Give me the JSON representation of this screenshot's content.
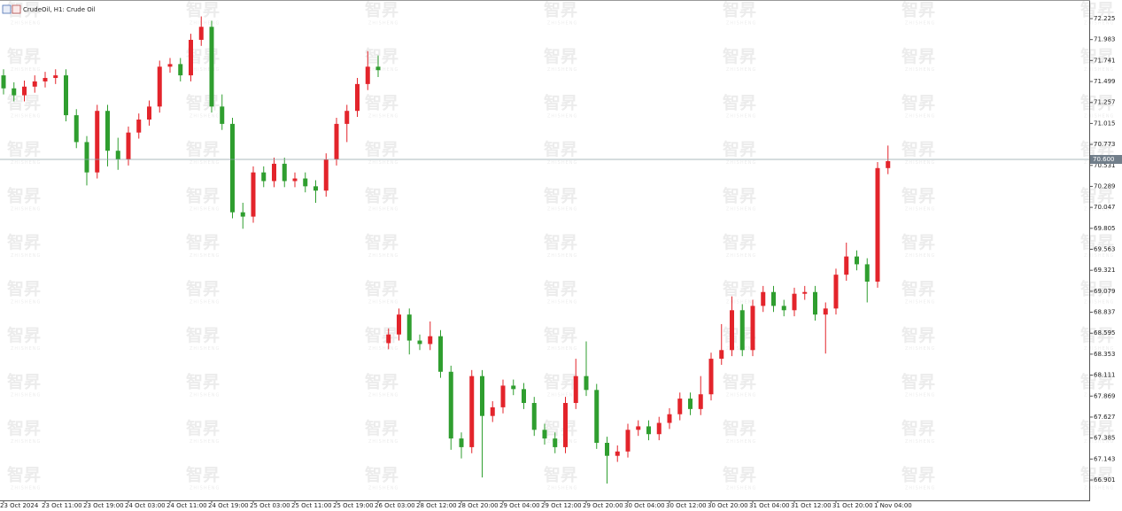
{
  "chart_data": {
    "type": "candlestick",
    "title": "CrudeOil, H1: Crude Oil",
    "watermark": "智昇",
    "watermark_sub": "ZHISHENG",
    "up_color": "#e3242b",
    "down_color": "#2f9e2f",
    "grid": false,
    "current_price": {
      "value": 70.6,
      "label": "70.600"
    },
    "ylim": [
      66.666,
      72.419
    ],
    "yticks": [
      72.225,
      71.983,
      71.741,
      71.499,
      71.257,
      71.015,
      70.773,
      70.531,
      70.289,
      70.047,
      69.805,
      69.563,
      69.321,
      69.079,
      68.837,
      68.595,
      68.353,
      68.111,
      67.869,
      67.627,
      67.385,
      67.143,
      66.901
    ],
    "categories": [
      "23 Oct 2024",
      null,
      null,
      null,
      "23 Oct 11:00",
      null,
      null,
      null,
      "23 Oct 19:00",
      null,
      null,
      null,
      "24 Oct 03:00",
      null,
      null,
      null,
      "24 Oct 11:00",
      null,
      null,
      null,
      "24 Oct 19:00",
      null,
      null,
      null,
      "25 Oct 03:00",
      null,
      null,
      null,
      "25 Oct 11:00",
      null,
      null,
      null,
      "25 Oct 19:00",
      null,
      null,
      null,
      "26 Oct 03:00",
      null,
      null,
      null,
      "28 Oct 12:00",
      null,
      null,
      null,
      "28 Oct 20:00",
      null,
      null,
      null,
      "29 Oct 04:00",
      null,
      null,
      null,
      "29 Oct 12:00",
      null,
      null,
      null,
      "29 Oct 20:00",
      null,
      null,
      null,
      "30 Oct 04:00",
      null,
      null,
      null,
      "30 Oct 12:00",
      null,
      null,
      null,
      "30 Oct 20:00",
      null,
      null,
      null,
      "31 Oct 04:00",
      null,
      null,
      null,
      "31 Oct 12:00",
      null,
      null,
      null,
      "31 Oct 20:00",
      null,
      null,
      null,
      "1 Nov 04:00",
      null
    ],
    "open": [
      71.57,
      71.42,
      71.34,
      71.44,
      71.5,
      71.54,
      71.57,
      71.11,
      70.8,
      70.45,
      71.16,
      70.7,
      70.6,
      70.91,
      71.06,
      71.21,
      71.67,
      71.7,
      71.57,
      71.98,
      72.13,
      71.21,
      71.01,
      69.99,
      69.94,
      70.45,
      70.35,
      70.55,
      70.35,
      70.38,
      70.29,
      70.24,
      70.6,
      71.01,
      71.16,
      71.47,
      71.67,
      68.48,
      68.58,
      68.81,
      68.51,
      68.47,
      68.56,
      68.15,
      67.38,
      67.28,
      68.1,
      67.64,
      67.74,
      67.99,
      67.95,
      67.79,
      67.48,
      67.38,
      67.28,
      67.79,
      68.1,
      67.94,
      67.33,
      67.18,
      67.23,
      67.48,
      67.52,
      67.43,
      67.56,
      67.66,
      67.84,
      67.72,
      67.89,
      68.3,
      68.4,
      68.86,
      68.4,
      68.91,
      69.07,
      68.91,
      68.86,
      69.05,
      69.07,
      68.81,
      68.88,
      69.27,
      69.48,
      69.39,
      69.19,
      70.5
    ],
    "high": [
      71.64,
      71.49,
      71.51,
      71.57,
      71.61,
      71.64,
      71.64,
      71.18,
      70.87,
      71.23,
      71.23,
      70.85,
      70.98,
      71.13,
      71.28,
      71.74,
      71.77,
      71.77,
      72.05,
      72.25,
      72.2,
      71.35,
      71.08,
      70.1,
      70.52,
      70.52,
      70.62,
      70.62,
      70.45,
      70.45,
      70.36,
      70.67,
      71.08,
      71.23,
      71.54,
      71.85,
      71.8,
      68.65,
      68.88,
      68.88,
      68.58,
      68.73,
      68.63,
      68.22,
      67.45,
      68.17,
      68.17,
      67.81,
      68.06,
      68.06,
      68.02,
      67.86,
      67.55,
      67.45,
      67.86,
      68.3,
      68.5,
      68.01,
      67.4,
      67.3,
      67.55,
      67.59,
      67.59,
      67.63,
      67.73,
      67.91,
      67.91,
      68.1,
      68.37,
      68.7,
      69.02,
      68.93,
      68.98,
      69.14,
      69.14,
      68.98,
      69.12,
      69.14,
      69.14,
      68.95,
      69.34,
      69.64,
      69.55,
      69.46,
      70.57,
      70.76
    ],
    "low": [
      71.35,
      71.27,
      71.27,
      71.37,
      71.43,
      71.47,
      71.04,
      70.73,
      70.3,
      70.38,
      70.52,
      70.48,
      70.53,
      70.84,
      70.99,
      71.14,
      71.6,
      71.5,
      71.5,
      71.91,
      71.14,
      70.94,
      69.92,
      69.8,
      69.87,
      70.28,
      70.28,
      70.28,
      70.28,
      70.22,
      70.1,
      70.17,
      70.53,
      70.8,
      71.09,
      71.4,
      71.55,
      68.41,
      68.51,
      68.35,
      68.4,
      68.4,
      68.08,
      67.25,
      67.15,
      67.21,
      66.93,
      67.57,
      67.67,
      67.88,
      67.72,
      67.41,
      67.31,
      67.21,
      67.21,
      67.72,
      67.87,
      67.26,
      66.86,
      67.11,
      67.16,
      67.41,
      67.36,
      67.36,
      67.49,
      67.59,
      67.65,
      67.65,
      67.82,
      68.23,
      68.33,
      68.33,
      68.33,
      68.84,
      68.84,
      68.79,
      68.79,
      68.98,
      68.74,
      68.36,
      68.81,
      69.2,
      69.32,
      68.95,
      69.12,
      70.43
    ],
    "close": [
      71.42,
      71.34,
      71.44,
      71.5,
      71.54,
      71.57,
      71.11,
      70.8,
      70.45,
      71.16,
      70.7,
      70.6,
      70.91,
      71.06,
      71.21,
      71.67,
      71.7,
      71.57,
      71.98,
      72.13,
      71.21,
      71.01,
      69.99,
      69.94,
      70.45,
      70.35,
      70.55,
      70.35,
      70.38,
      70.29,
      70.24,
      70.6,
      71.01,
      71.16,
      71.47,
      71.67,
      71.63,
      68.58,
      68.81,
      68.51,
      68.47,
      68.56,
      68.15,
      67.38,
      67.28,
      68.1,
      67.64,
      67.74,
      67.99,
      67.95,
      67.79,
      67.48,
      67.38,
      67.28,
      67.79,
      68.1,
      67.94,
      67.33,
      67.18,
      67.23,
      67.48,
      67.52,
      67.43,
      67.56,
      67.66,
      67.84,
      67.72,
      67.89,
      68.3,
      68.4,
      68.86,
      68.4,
      68.91,
      69.07,
      68.91,
      68.86,
      69.05,
      69.07,
      68.81,
      68.88,
      69.27,
      69.48,
      69.39,
      69.19,
      70.5,
      70.58
    ]
  }
}
